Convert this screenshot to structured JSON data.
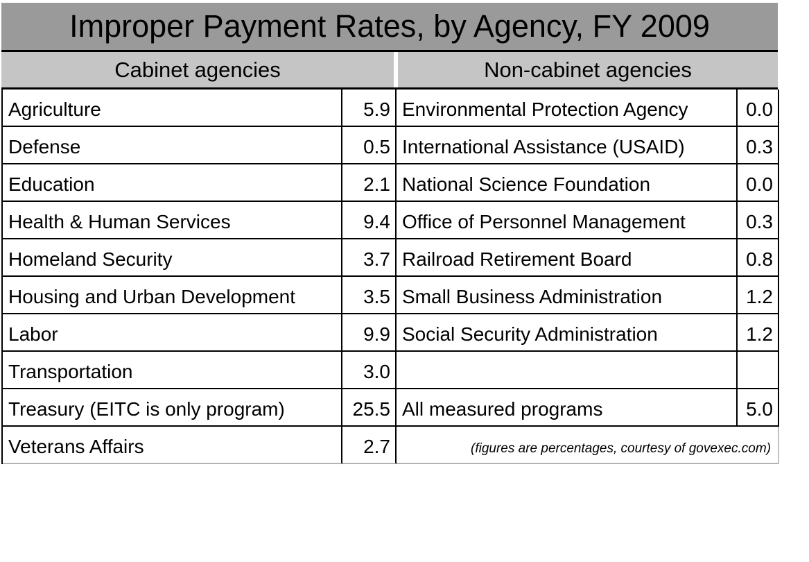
{
  "title": "Improper Payment Rates, by Agency, FY 2009",
  "headers": {
    "left": "Cabinet agencies",
    "right": "Non-cabinet agencies"
  },
  "footnote": "(figures are percentages, courtesy of govexec.com)",
  "colors": {
    "title_bar_bg": "#9a9a9a",
    "header_bg": "#c5c5c5",
    "border": "#000000",
    "outer_bottom_border": "#b3b3b3",
    "background": "#ffffff",
    "text": "#000000"
  },
  "rows": [
    {
      "left_name": "Agriculture",
      "left_value": "5.9",
      "right_name": "Environmental Protection Agency",
      "right_value": "0.0"
    },
    {
      "left_name": "Defense",
      "left_value": "0.5",
      "right_name": "International Assistance (USAID)",
      "right_value": "0.3"
    },
    {
      "left_name": "Education",
      "left_value": "2.1",
      "right_name": "National Science Foundation",
      "right_value": "0.0"
    },
    {
      "left_name": "Health & Human Services",
      "left_value": "9.4",
      "right_name": "Office of Personnel Management",
      "right_value": "0.3"
    },
    {
      "left_name": "Homeland Security",
      "left_value": "3.7",
      "right_name": "Railroad Retirement Board",
      "right_value": "0.8"
    },
    {
      "left_name": "Housing and Urban Development",
      "left_value": "3.5",
      "right_name": "Small Business Administration",
      "right_value": "1.2"
    },
    {
      "left_name": "Labor",
      "left_value": "9.9",
      "right_name": "Social Security Administration",
      "right_value": "1.2"
    },
    {
      "left_name": "Transportation",
      "left_value": "3.0",
      "right_name": "",
      "right_value": ""
    },
    {
      "left_name": "Treasury (EITC is only program)",
      "left_value": "25.5",
      "right_name": "All measured programs",
      "right_value": "5.0"
    },
    {
      "left_name": "Veterans Affairs",
      "left_value": "2.7"
    }
  ],
  "chart_data": {
    "type": "table",
    "title": "Improper Payment Rates, by Agency, FY 2009",
    "units": "percent",
    "series": [
      {
        "name": "Cabinet agencies",
        "categories": [
          "Agriculture",
          "Defense",
          "Education",
          "Health & Human Services",
          "Homeland Security",
          "Housing and Urban Development",
          "Labor",
          "Transportation",
          "Treasury (EITC is only program)",
          "Veterans Affairs"
        ],
        "values": [
          5.9,
          0.5,
          2.1,
          9.4,
          3.7,
          3.5,
          9.9,
          3.0,
          25.5,
          2.7
        ]
      },
      {
        "name": "Non-cabinet agencies",
        "categories": [
          "Environmental Protection Agency",
          "International Assistance (USAID)",
          "National Science Foundation",
          "Office of Personnel Management",
          "Railroad Retirement Board",
          "Small Business Administration",
          "Social Security Administration"
        ],
        "values": [
          0.0,
          0.3,
          0.0,
          0.3,
          0.8,
          1.2,
          1.2
        ]
      },
      {
        "name": "All measured programs",
        "categories": [
          "All measured programs"
        ],
        "values": [
          5.0
        ]
      }
    ],
    "annotations": [
      "(figures are percentages, courtesy of govexec.com)"
    ]
  }
}
